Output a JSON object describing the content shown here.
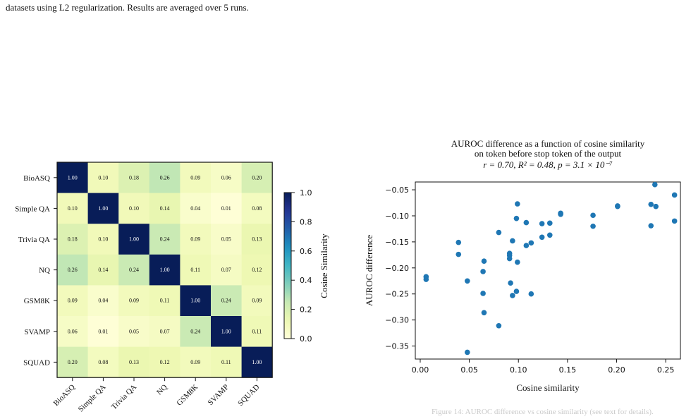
{
  "caption": "datasets using L2 regularization. Results are averaged over 5 runs.",
  "footer_snippet": "Figure 14: AUROC difference vs cosine similarity (see text for details).",
  "chart_data": [
    {
      "type": "heatmap",
      "labels": [
        "BioASQ",
        "Simple QA",
        "Trivia QA",
        "NQ",
        "GSM8K",
        "SVAMP",
        "SQUAD"
      ],
      "matrix": [
        [
          1.0,
          0.1,
          0.18,
          0.26,
          0.09,
          0.06,
          0.2
        ],
        [
          0.1,
          1.0,
          0.1,
          0.14,
          0.04,
          0.01,
          0.08
        ],
        [
          0.18,
          0.1,
          1.0,
          0.24,
          0.09,
          0.05,
          0.13
        ],
        [
          0.26,
          0.14,
          0.24,
          1.0,
          0.11,
          0.07,
          0.12
        ],
        [
          0.09,
          0.04,
          0.09,
          0.11,
          1.0,
          0.24,
          0.09
        ],
        [
          0.06,
          0.01,
          0.05,
          0.07,
          0.24,
          1.0,
          0.11
        ],
        [
          0.2,
          0.08,
          0.13,
          0.12,
          0.09,
          0.11,
          1.0
        ]
      ],
      "colorbar": {
        "label": "Cosine Similarity",
        "ticks": [
          "0.0",
          "0.2",
          "0.4",
          "0.6",
          "0.8",
          "1.0"
        ],
        "range": [
          0,
          1
        ]
      },
      "colormap": "YlGnBu"
    },
    {
      "type": "scatter",
      "title_lines": [
        "AUROC difference as a function of cosine similarity",
        "on token before stop token of the output"
      ],
      "stats_line": "r = 0.70, R² = 0.48, p = 3.1 × 10⁻⁷",
      "xlabel": "Cosine similarity",
      "ylabel": "AUROC difference",
      "xlim": [
        -0.005,
        0.265
      ],
      "ylim": [
        -0.375,
        -0.035
      ],
      "xticks": [
        "0.00",
        "0.05",
        "0.10",
        "0.15",
        "0.20",
        "0.25"
      ],
      "xtick_values": [
        0.0,
        0.05,
        0.1,
        0.15,
        0.2,
        0.25
      ],
      "yticks": [
        "−0.35",
        "−0.30",
        "−0.25",
        "−0.20",
        "−0.15",
        "−0.10",
        "−0.05"
      ],
      "ytick_values": [
        -0.35,
        -0.3,
        -0.25,
        -0.2,
        -0.15,
        -0.1,
        -0.05
      ],
      "color": "#1f77b4",
      "points": [
        [
          0.006,
          -0.217
        ],
        [
          0.006,
          -0.222
        ],
        [
          0.039,
          -0.151
        ],
        [
          0.039,
          -0.174
        ],
        [
          0.048,
          -0.225
        ],
        [
          0.048,
          -0.362
        ],
        [
          0.064,
          -0.207
        ],
        [
          0.065,
          -0.187
        ],
        [
          0.064,
          -0.249
        ],
        [
          0.065,
          -0.286
        ],
        [
          0.08,
          -0.132
        ],
        [
          0.08,
          -0.311
        ],
        [
          0.091,
          -0.172
        ],
        [
          0.091,
          -0.176
        ],
        [
          0.091,
          -0.182
        ],
        [
          0.092,
          -0.229
        ],
        [
          0.094,
          -0.148
        ],
        [
          0.094,
          -0.253
        ],
        [
          0.098,
          -0.105
        ],
        [
          0.099,
          -0.077
        ],
        [
          0.099,
          -0.189
        ],
        [
          0.098,
          -0.245
        ],
        [
          0.108,
          -0.113
        ],
        [
          0.108,
          -0.157
        ],
        [
          0.113,
          -0.152
        ],
        [
          0.113,
          -0.25
        ],
        [
          0.124,
          -0.115
        ],
        [
          0.124,
          -0.141
        ],
        [
          0.132,
          -0.114
        ],
        [
          0.132,
          -0.137
        ],
        [
          0.143,
          -0.095
        ],
        [
          0.143,
          -0.097
        ],
        [
          0.176,
          -0.099
        ],
        [
          0.176,
          -0.12
        ],
        [
          0.201,
          -0.081
        ],
        [
          0.201,
          -0.082
        ],
        [
          0.235,
          -0.078
        ],
        [
          0.235,
          -0.119
        ],
        [
          0.239,
          -0.04
        ],
        [
          0.24,
          -0.082
        ],
        [
          0.259,
          -0.06
        ],
        [
          0.259,
          -0.11
        ]
      ]
    }
  ]
}
